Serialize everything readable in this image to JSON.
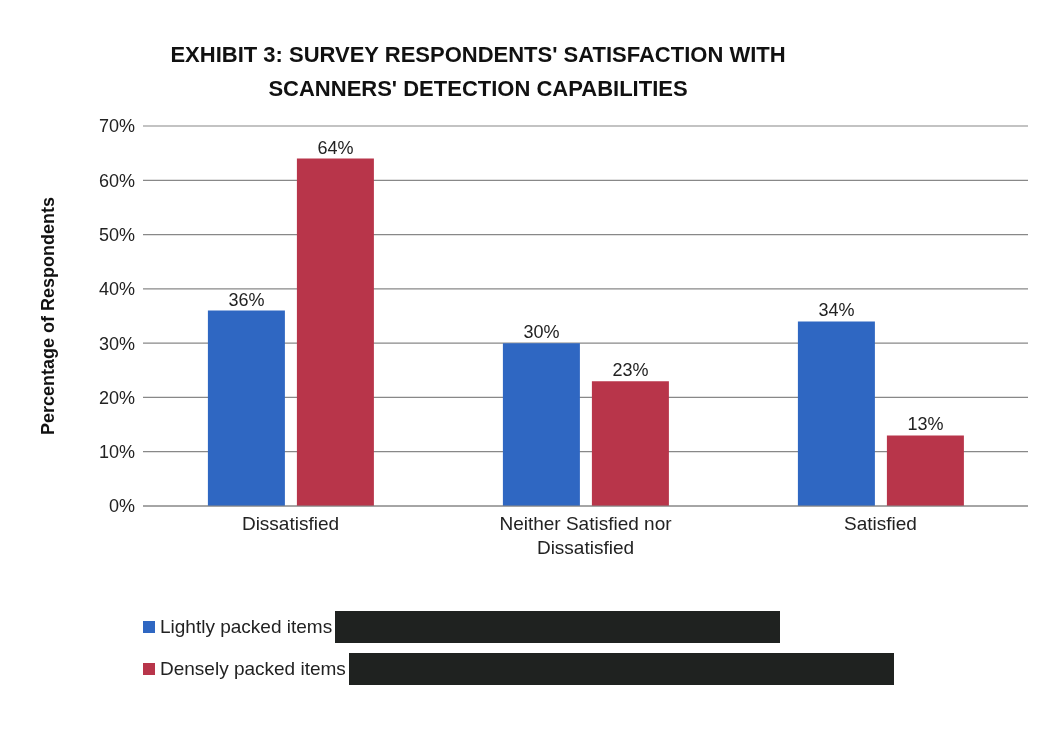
{
  "chart_data": {
    "type": "bar",
    "title": "EXHIBIT 3: SURVEY RESPONDENTS' SATISFACTION WITH SCANNERS' DETECTION CAPABILITIES",
    "ylabel": "Percentage of Respondents",
    "categories": [
      "Dissatisfied",
      "Neither Satisfied nor Dissatisfied",
      "Satisfied"
    ],
    "series": [
      {
        "name": "Lightly packed items",
        "color": "#2f67c2",
        "values": [
          36,
          30,
          34
        ],
        "value_labels": [
          "36%",
          "30%",
          "34%"
        ]
      },
      {
        "name": "Densely packed items",
        "color": "#b8354a",
        "values": [
          64,
          23,
          13
        ],
        "value_labels": [
          "64%",
          "23%",
          "13%"
        ]
      }
    ],
    "ylim": [
      0,
      70
    ],
    "yticks": [
      {
        "value": 0,
        "label": "0%"
      },
      {
        "value": 10,
        "label": "10%"
      },
      {
        "value": 20,
        "label": "20%"
      },
      {
        "value": 30,
        "label": "30%"
      },
      {
        "value": 40,
        "label": "40%"
      },
      {
        "value": 50,
        "label": "50%"
      },
      {
        "value": 60,
        "label": "60%"
      },
      {
        "value": 70,
        "label": "70%"
      }
    ],
    "grid": "y",
    "legend": "bottom"
  }
}
